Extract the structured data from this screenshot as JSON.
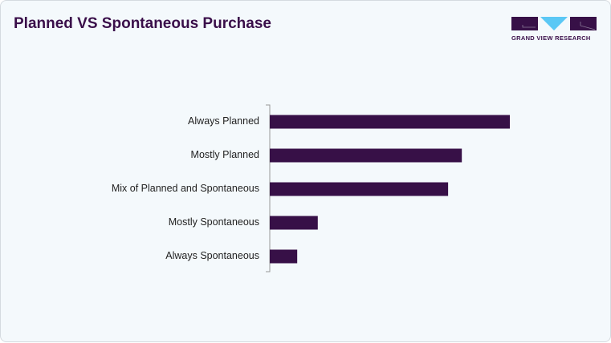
{
  "header": {
    "title": "Planned VS Spontaneous Purchase"
  },
  "logo": {
    "text": "GRAND VIEW RESEARCH"
  },
  "colors": {
    "bar": "#371047",
    "title": "#3a0f4a",
    "logo_accent": "#5bc8f5",
    "background": "#f4f9fc"
  },
  "chart_data": {
    "type": "bar",
    "orientation": "horizontal",
    "title": "Planned VS Spontaneous Purchase",
    "categories": [
      "Always Planned",
      "Mostly Planned",
      "Mix of Planned and Spontaneous",
      "Mostly Spontaneous",
      "Always Spontaneous"
    ],
    "values": [
      35,
      28,
      26,
      7,
      4
    ],
    "xlabel": "",
    "ylabel": "",
    "grid": false,
    "legend": "none"
  }
}
